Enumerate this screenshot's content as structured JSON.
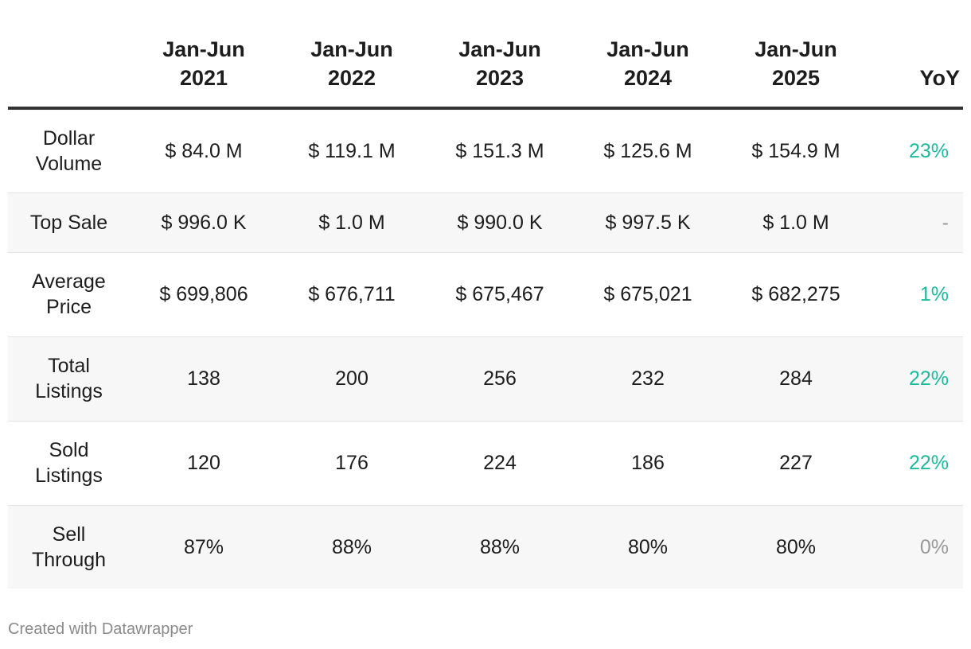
{
  "chart_data": {
    "type": "table",
    "columns": [
      "",
      "Jan-Jun 2021",
      "Jan-Jun 2022",
      "Jan-Jun 2023",
      "Jan-Jun 2024",
      "Jan-Jun 2025",
      "YoY"
    ],
    "header": {
      "label": "",
      "years": [
        {
          "line1": "Jan-Jun",
          "line2": "2021"
        },
        {
          "line1": "Jan-Jun",
          "line2": "2022"
        },
        {
          "line1": "Jan-Jun",
          "line2": "2023"
        },
        {
          "line1": "Jan-Jun",
          "line2": "2024"
        },
        {
          "line1": "Jan-Jun",
          "line2": "2025"
        }
      ],
      "yoy": "YoY"
    },
    "rows": [
      {
        "label": "Dollar Volume",
        "values": [
          "$ 84.0 M",
          "$ 119.1 M",
          "$ 151.3 M",
          "$ 125.6 M",
          "$ 154.9 M"
        ],
        "yoy": "23%",
        "yoy_tone": "positive"
      },
      {
        "label": "Top Sale",
        "values": [
          "$ 996.0 K",
          "$ 1.0 M",
          "$ 990.0 K",
          "$ 997.5 K",
          "$ 1.0 M"
        ],
        "yoy": "-",
        "yoy_tone": "neutral"
      },
      {
        "label": "Average Price",
        "values": [
          "$ 699,806",
          "$ 676,711",
          "$ 675,467",
          "$ 675,021",
          "$ 682,275"
        ],
        "yoy": "1%",
        "yoy_tone": "positive"
      },
      {
        "label": "Total Listings",
        "values": [
          "138",
          "200",
          "256",
          "232",
          "284"
        ],
        "yoy": "22%",
        "yoy_tone": "positive"
      },
      {
        "label": "Sold Listings",
        "values": [
          "120",
          "176",
          "224",
          "186",
          "227"
        ],
        "yoy": "22%",
        "yoy_tone": "positive"
      },
      {
        "label": "Sell Through",
        "values": [
          "87%",
          "88%",
          "88%",
          "80%",
          "80%"
        ],
        "yoy": "0%",
        "yoy_tone": "neutral"
      }
    ]
  },
  "colors": {
    "positive": "#1bbc9b",
    "neutral": "#9a9a9a",
    "header_rule": "#333333",
    "row_alt": "#f7f7f7"
  },
  "footer": {
    "credit": "Created with Datawrapper"
  }
}
